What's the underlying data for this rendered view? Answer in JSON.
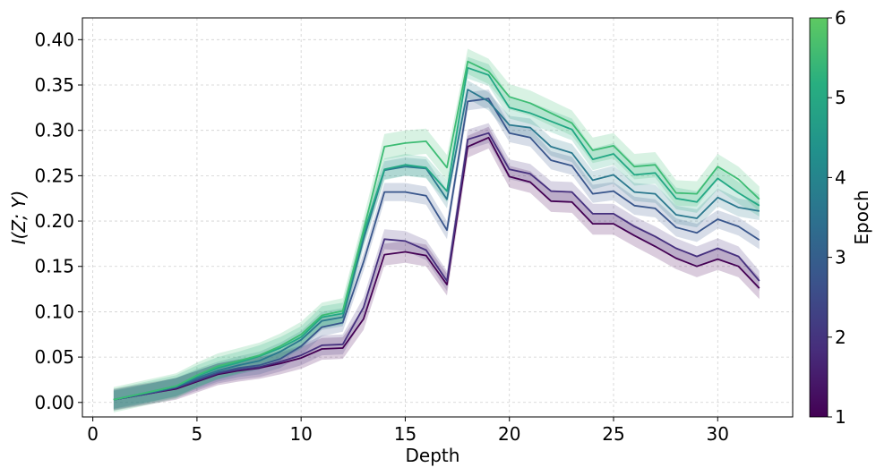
{
  "chart_data": {
    "type": "line",
    "title": "",
    "xlabel": "Depth",
    "ylabel": "I(Z; Y)",
    "xlim": [
      -0.5,
      33.6
    ],
    "ylim": [
      -0.016,
      0.424
    ],
    "xticks": [
      0,
      5,
      10,
      15,
      20,
      25,
      30
    ],
    "yticks": [
      0.0,
      0.05,
      0.1,
      0.15,
      0.2,
      0.25,
      0.3,
      0.35,
      0.4
    ],
    "ytick_labels": [
      "0.00",
      "0.05",
      "0.10",
      "0.15",
      "0.20",
      "0.25",
      "0.30",
      "0.35",
      "0.40"
    ],
    "grid": true,
    "colorbar": {
      "label": "Epoch",
      "min": 1,
      "max": 6,
      "ticks": [
        1,
        2,
        3,
        4,
        5,
        6
      ],
      "colors": [
        "#440154",
        "#472d7b",
        "#3b528b",
        "#2c728e",
        "#21918c",
        "#28ae80",
        "#5ec962"
      ]
    },
    "x": [
      1,
      2,
      3,
      4,
      5,
      6,
      7,
      8,
      9,
      10,
      11,
      12,
      13,
      14,
      15,
      16,
      17,
      18,
      19,
      20,
      21,
      22,
      23,
      24,
      25,
      26,
      27,
      28,
      29,
      30,
      31,
      32
    ],
    "series": [
      {
        "name": "Epoch 1",
        "color": "#440154",
        "band": 0.012,
        "values": [
          0.003,
          0.007,
          0.011,
          0.015,
          0.023,
          0.031,
          0.035,
          0.038,
          0.043,
          0.049,
          0.059,
          0.06,
          0.092,
          0.163,
          0.166,
          0.162,
          0.13,
          0.282,
          0.292,
          0.249,
          0.243,
          0.222,
          0.221,
          0.197,
          0.197,
          0.184,
          0.172,
          0.159,
          0.15,
          0.158,
          0.15,
          0.126
        ]
      },
      {
        "name": "Epoch 2",
        "color": "#46307e",
        "band": 0.011,
        "values": [
          0.003,
          0.007,
          0.011,
          0.016,
          0.024,
          0.032,
          0.036,
          0.039,
          0.045,
          0.052,
          0.063,
          0.064,
          0.105,
          0.18,
          0.178,
          0.168,
          0.134,
          0.29,
          0.297,
          0.257,
          0.252,
          0.233,
          0.232,
          0.208,
          0.208,
          0.194,
          0.183,
          0.17,
          0.161,
          0.17,
          0.161,
          0.134
        ]
      },
      {
        "name": "Epoch 3",
        "color": "#39568c",
        "band": 0.01,
        "values": [
          0.003,
          0.007,
          0.012,
          0.017,
          0.025,
          0.033,
          0.038,
          0.041,
          0.048,
          0.062,
          0.083,
          0.088,
          0.155,
          0.232,
          0.232,
          0.228,
          0.19,
          0.332,
          0.335,
          0.297,
          0.292,
          0.267,
          0.261,
          0.23,
          0.233,
          0.217,
          0.214,
          0.193,
          0.187,
          0.202,
          0.194,
          0.179
        ]
      },
      {
        "name": "Epoch 4",
        "color": "#2a788e",
        "band": 0.01,
        "values": [
          0.003,
          0.008,
          0.012,
          0.017,
          0.027,
          0.035,
          0.041,
          0.046,
          0.056,
          0.069,
          0.09,
          0.094,
          0.18,
          0.256,
          0.26,
          0.258,
          0.224,
          0.345,
          0.332,
          0.306,
          0.303,
          0.282,
          0.275,
          0.245,
          0.251,
          0.232,
          0.23,
          0.207,
          0.203,
          0.226,
          0.215,
          0.211
        ]
      },
      {
        "name": "Epoch 5",
        "color": "#22a884",
        "band": 0.012,
        "values": [
          0.003,
          0.008,
          0.013,
          0.018,
          0.029,
          0.038,
          0.044,
          0.051,
          0.06,
          0.072,
          0.094,
          0.098,
          0.186,
          0.257,
          0.262,
          0.259,
          0.233,
          0.369,
          0.361,
          0.325,
          0.319,
          0.31,
          0.301,
          0.268,
          0.274,
          0.251,
          0.253,
          0.225,
          0.221,
          0.247,
          0.231,
          0.217
        ]
      },
      {
        "name": "Epoch 6",
        "color": "#3dbc74",
        "band": 0.014,
        "values": [
          0.003,
          0.008,
          0.013,
          0.018,
          0.03,
          0.04,
          0.046,
          0.052,
          0.062,
          0.075,
          0.096,
          0.101,
          0.19,
          0.282,
          0.286,
          0.288,
          0.259,
          0.376,
          0.365,
          0.337,
          0.33,
          0.319,
          0.308,
          0.278,
          0.283,
          0.26,
          0.262,
          0.231,
          0.23,
          0.26,
          0.246,
          0.224
        ]
      }
    ]
  }
}
